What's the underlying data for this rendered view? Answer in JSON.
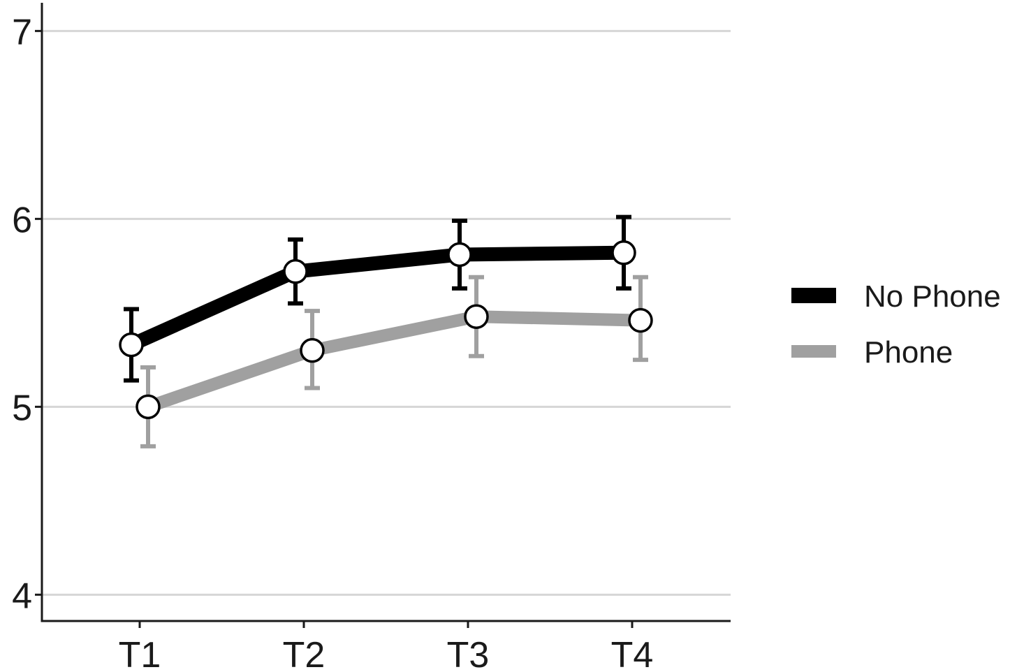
{
  "chart_data": {
    "type": "line",
    "title": "",
    "xlabel": "",
    "ylabel": "",
    "categories": [
      "T1",
      "T2",
      "T3",
      "T4"
    ],
    "ylim": [
      3.86,
      7.15
    ],
    "yticks": [
      4,
      5,
      6,
      7
    ],
    "grid": "horizontal",
    "legend_position": "right",
    "series": [
      {
        "name": "No Phone",
        "color": "#000000",
        "values": [
          5.33,
          5.72,
          5.81,
          5.82
        ],
        "error_lower": [
          5.14,
          5.55,
          5.63,
          5.63
        ],
        "error_upper": [
          5.52,
          5.89,
          5.99,
          6.01
        ]
      },
      {
        "name": "Phone",
        "color": "#a0a0a0",
        "values": [
          5.0,
          5.3,
          5.48,
          5.46
        ],
        "error_lower": [
          4.79,
          5.1,
          5.27,
          5.25
        ],
        "error_upper": [
          5.21,
          5.51,
          5.69,
          5.69
        ]
      }
    ]
  }
}
